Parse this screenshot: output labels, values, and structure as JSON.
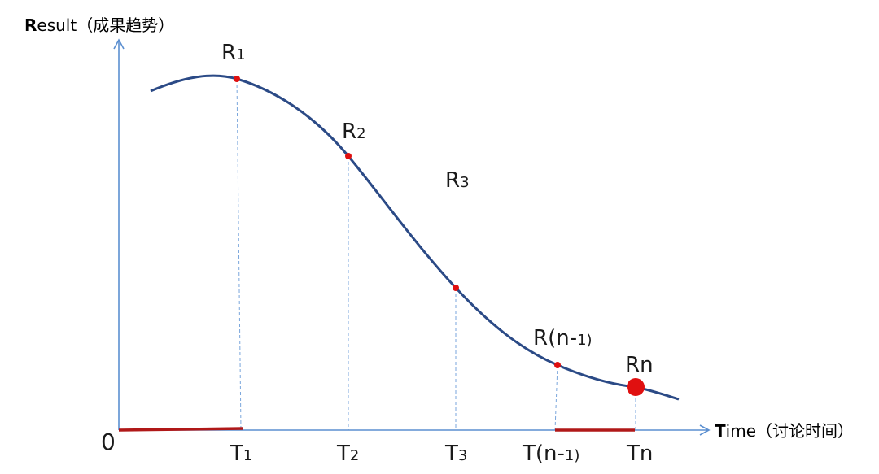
{
  "y_axis": {
    "initial": "R",
    "rest": "esult（成果趋势）"
  },
  "x_axis": {
    "initial": "T",
    "rest": "ime（讨论时间）"
  },
  "origin_label": "0",
  "result_points": [
    {
      "id": "r1",
      "base": "R",
      "sub": "1",
      "emphasized": false
    },
    {
      "id": "r2",
      "base": "R",
      "sub": "2",
      "emphasized": false
    },
    {
      "id": "r3",
      "base": "R",
      "sub": "3",
      "emphasized": false
    },
    {
      "id": "rn-1",
      "base": "R(n-",
      "sub": "1)",
      "emphasized": false
    },
    {
      "id": "rn",
      "base": "Rn",
      "sub": "",
      "emphasized": true
    }
  ],
  "time_ticks": [
    {
      "id": "t1",
      "base": "T",
      "sub": "1"
    },
    {
      "id": "t2",
      "base": "T",
      "sub": "2"
    },
    {
      "id": "t3",
      "base": "T",
      "sub": "3"
    },
    {
      "id": "tn-1",
      "base": "T(n-",
      "sub": "1)"
    },
    {
      "id": "tn",
      "base": "Tn",
      "sub": ""
    }
  ],
  "colors": {
    "axis": "#5b8fd0",
    "curve": "#2b4a86",
    "guide": "#7aa6dc",
    "point": "#e01010",
    "highlight_segment": "#b01818",
    "text": "#1a1a1a"
  }
}
